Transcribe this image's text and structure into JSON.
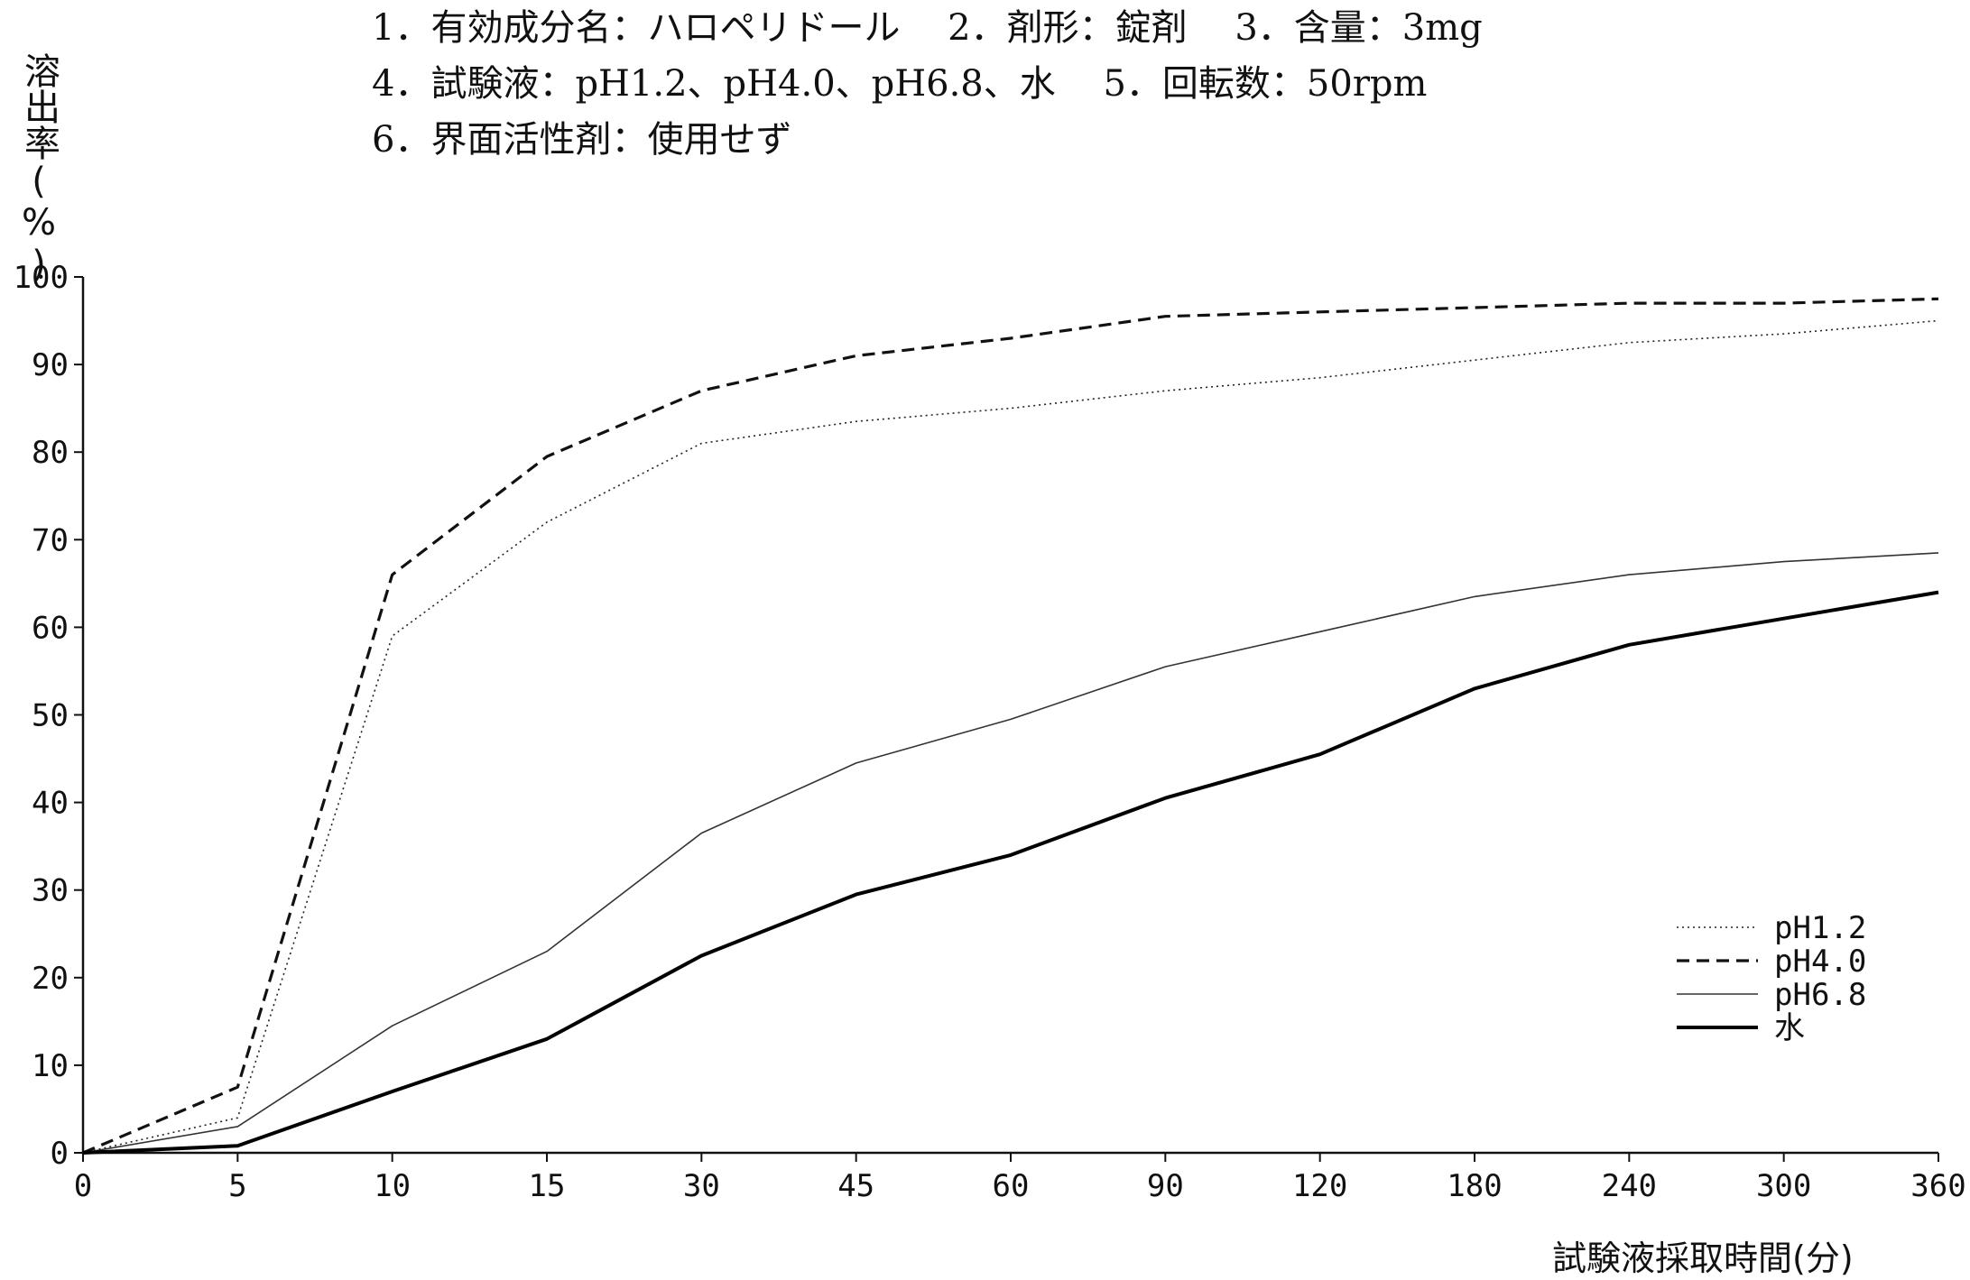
{
  "header": {
    "lines": [
      "1．有効成分名：ハロペリドール　 2．剤形：錠剤　 3．含量：3mg",
      "4．試験液：pH1.2、pH4.0、pH6.8、水　 5．回転数：50rpm",
      "6．界面活性剤：使用せず"
    ]
  },
  "chart_data": {
    "type": "line",
    "ylabel": "溶出率(%)",
    "xlabel": "試験液採取時間(分)",
    "categories": [
      "0",
      "5",
      "10",
      "15",
      "30",
      "45",
      "60",
      "90",
      "120",
      "180",
      "240",
      "300",
      "360"
    ],
    "ylim": [
      0,
      100
    ],
    "yticks": [
      "0",
      "10",
      "20",
      "30",
      "40",
      "50",
      "60",
      "70",
      "80",
      "90",
      "100"
    ],
    "grid": false,
    "legend_position": "bottom-right",
    "series": [
      {
        "name": "pH1.2",
        "style": "dotted",
        "color": "#222222",
        "values": [
          0,
          4,
          59,
          72,
          81,
          83.5,
          85,
          87,
          88.5,
          90.5,
          92.5,
          93.5,
          95
        ]
      },
      {
        "name": "pH4.0",
        "style": "dashed",
        "color": "#111111",
        "values": [
          0,
          7.5,
          66,
          79.5,
          87,
          91,
          93,
          95.5,
          96,
          96.5,
          97,
          97,
          97.5
        ]
      },
      {
        "name": "pH6.8",
        "style": "thin",
        "color": "#333333",
        "values": [
          0,
          3,
          14.5,
          23,
          36.5,
          44.5,
          49.5,
          55.5,
          59.5,
          63.5,
          66,
          67.5,
          68.5
        ]
      },
      {
        "name": "水",
        "style": "thick",
        "color": "#000000",
        "values": [
          0,
          0.8,
          7,
          13,
          22.5,
          29.5,
          34,
          40.5,
          45.5,
          53,
          58,
          61,
          64
        ]
      }
    ]
  }
}
